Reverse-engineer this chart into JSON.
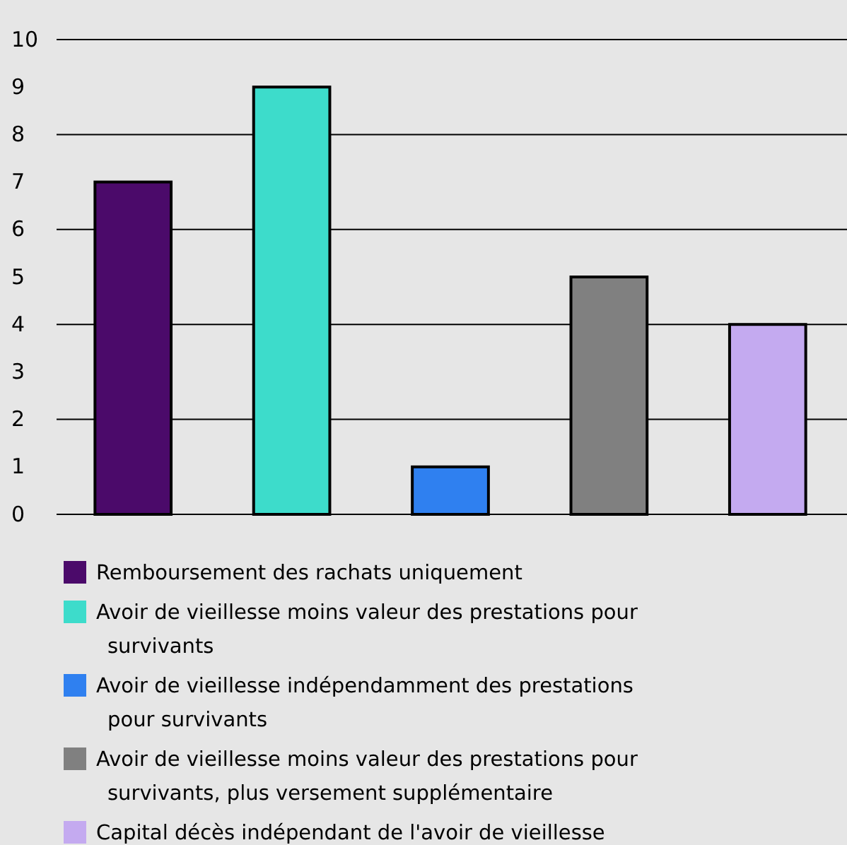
{
  "chart_data": {
    "type": "bar",
    "categories": [
      null,
      null,
      null,
      null,
      null
    ],
    "stacked": true,
    "series": [
      {
        "name": "Remboursement des rachats uniquement",
        "color": "#4b0a6a",
        "values": [
          7,
          null,
          null,
          null,
          null
        ]
      },
      {
        "name": "Avoir de vieillesse moins valeur des prestations pour survivants",
        "color": "#3ddccb",
        "values": [
          null,
          9,
          null,
          null,
          null
        ]
      },
      {
        "name": "Avoir de vieillesse indépendamment des prestations pour survivants",
        "color": "#2f80f0",
        "values": [
          null,
          null,
          1,
          null,
          null
        ]
      },
      {
        "name": "Avoir de vieillesse moins valeur des prestations pour survivants, plus versement supplémentaire",
        "color": "#808080",
        "values": [
          null,
          null,
          null,
          5,
          null
        ]
      },
      {
        "name": "Capital décès indépendant de l'avoir de vieillesse",
        "color": "#c4aaf0",
        "values": [
          null,
          null,
          null,
          null,
          4
        ]
      }
    ],
    "ylim": [
      0,
      10
    ],
    "yticks": [
      0,
      1,
      2,
      3,
      4,
      5,
      6,
      7,
      8,
      9,
      10
    ],
    "grid": "y",
    "legend": "bottom",
    "tick_labels": "y"
  }
}
